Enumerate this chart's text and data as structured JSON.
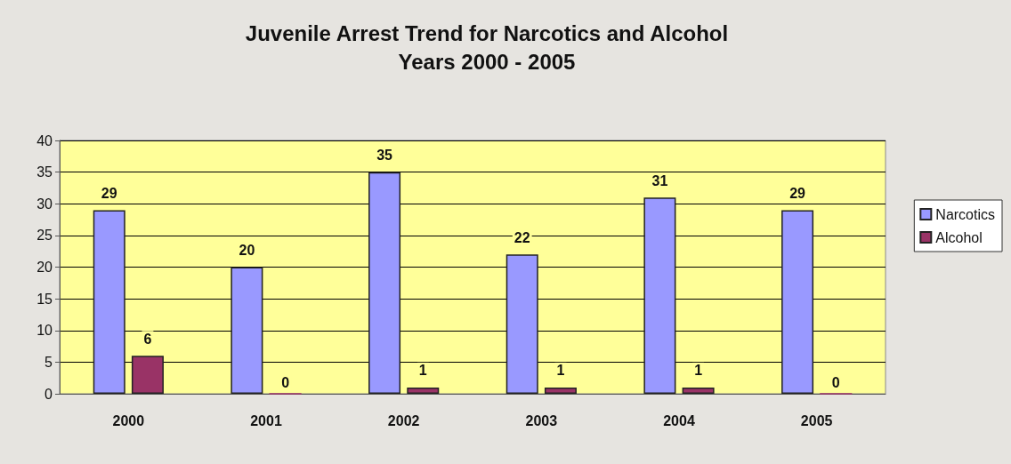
{
  "chart_data": {
    "type": "bar",
    "title": "Juvenile Arrest Trend for Narcotics and Alcohol",
    "subtitle": "Years 2000 - 2005",
    "categories": [
      "2000",
      "2001",
      "2002",
      "2003",
      "2004",
      "2005"
    ],
    "series": [
      {
        "name": "Narcotics",
        "color": "#9999ff",
        "values": [
          29,
          20,
          35,
          22,
          31,
          29
        ]
      },
      {
        "name": "Alcohol",
        "color": "#993366",
        "values": [
          6,
          0,
          1,
          1,
          1,
          0
        ]
      }
    ],
    "ylim": [
      0,
      40
    ],
    "yticks": [
      0,
      5,
      10,
      15,
      20,
      25,
      30,
      35,
      40
    ],
    "grid": "y",
    "legend": "right",
    "data_labels": true
  }
}
